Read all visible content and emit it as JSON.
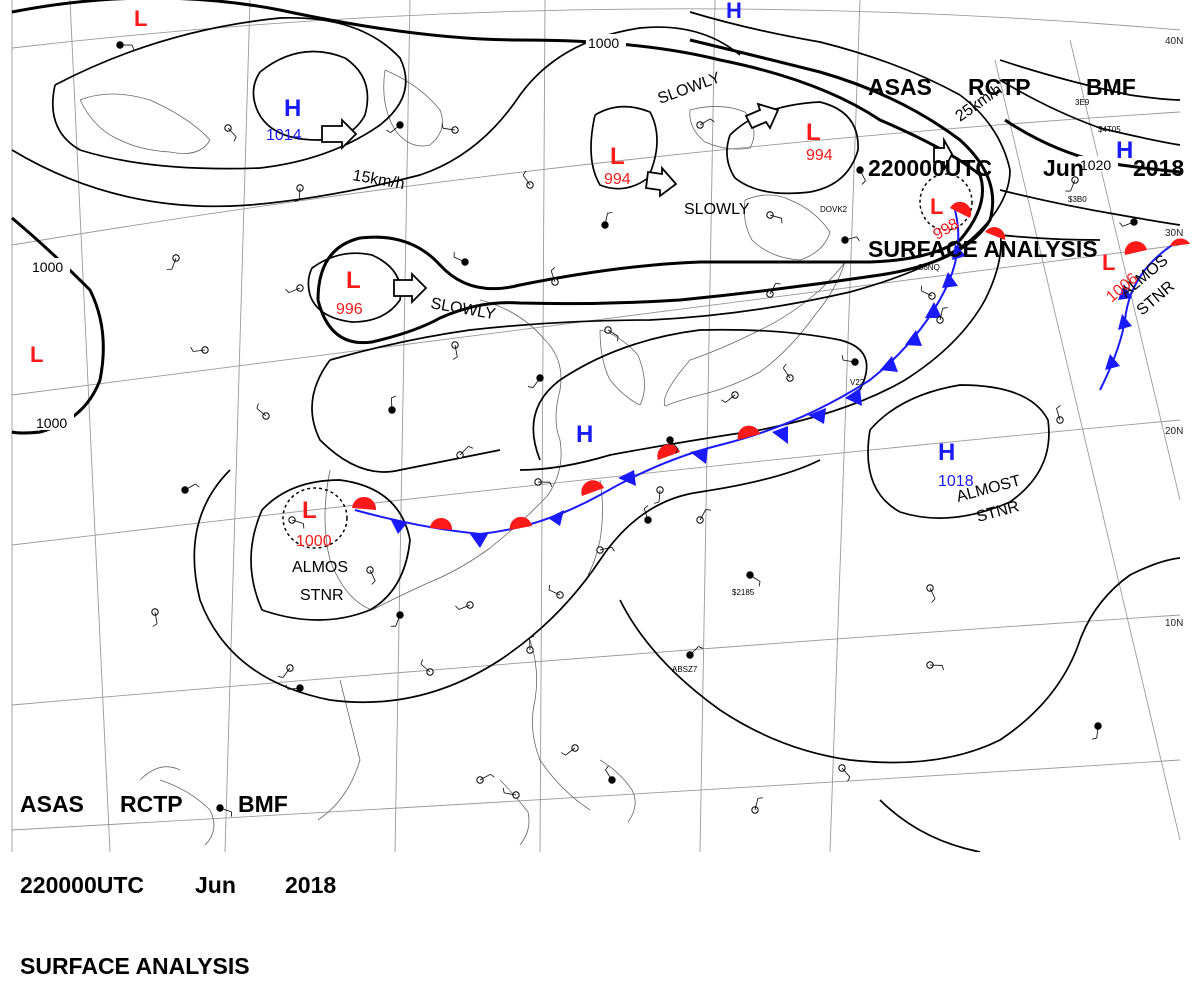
{
  "header": {
    "agency": "ASAS",
    "station": "RCTP",
    "office": "BMF",
    "time": "220000UTC",
    "month": "Jun",
    "year": "2018",
    "title": "SURFACE ANALYSIS"
  },
  "colors": {
    "high": "#1a1aff",
    "low": "#ff1a1a",
    "front_cold": "#1a1aff",
    "front_warm": "#ff1a1a",
    "isobar": "#000000",
    "grid": "#9a9a9a"
  },
  "latitude_labels": [
    "40N",
    "30N",
    "20N",
    "10N"
  ],
  "pressure_centers": [
    {
      "type": "H",
      "value": "1014"
    },
    {
      "type": "L",
      "value": "996"
    },
    {
      "type": "L",
      "value": "994"
    },
    {
      "type": "L",
      "value": "994"
    },
    {
      "type": "L",
      "value": "998"
    },
    {
      "type": "L",
      "value": "1006"
    },
    {
      "type": "H",
      "value": ""
    },
    {
      "type": "H",
      "value": "1018"
    },
    {
      "type": "L",
      "value": "1000"
    },
    {
      "type": "H",
      "value": "1020"
    },
    {
      "type": "L",
      "value": ""
    },
    {
      "type": "H",
      "value": ""
    },
    {
      "type": "L",
      "value": ""
    }
  ],
  "isobar_labels": [
    "1000",
    "1000",
    "1000",
    "1020"
  ],
  "movement_labels": [
    "15km/h",
    "SLOWLY",
    "SLOWLY",
    "SLOWLY",
    "25km/h"
  ],
  "stationary_labels": [
    {
      "line1": "ALMOST",
      "line2": "STNR"
    },
    {
      "line1": "ALMOS",
      "line2": "STNR"
    },
    {
      "line1": "ALMOS",
      "line2": "STNR"
    }
  ],
  "ship_labels": [
    "DOVK2",
    "S6NQ",
    "V22",
    "3E9",
    "$4T05",
    "$2185",
    "ABSZ7",
    "$3B0"
  ]
}
